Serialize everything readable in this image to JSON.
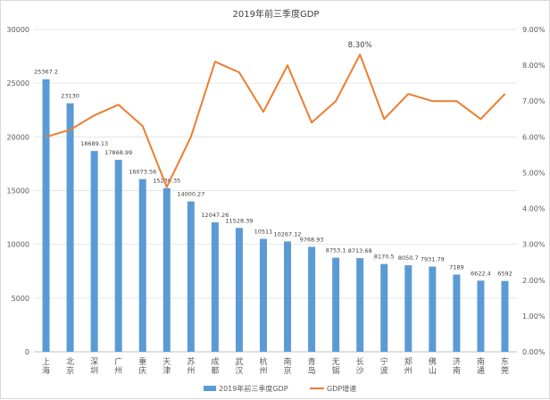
{
  "chart_data": {
    "type": "bar+line",
    "title": "2019年前三季度GDP",
    "categories": [
      "上海",
      "北京",
      "深圳",
      "广州",
      "重庆",
      "天津",
      "苏州",
      "成都",
      "武汉",
      "杭州",
      "南京",
      "青岛",
      "无锡",
      "长沙",
      "宁波",
      "郑州",
      "佛山",
      "济南",
      "南通",
      "东莞"
    ],
    "series": [
      {
        "name": "2019年前三季度GDP",
        "type": "bar",
        "axis": "left",
        "color": "#5B9BD5",
        "values": [
          25367.2,
          23130,
          18689.13,
          17868.99,
          16073.56,
          15236.35,
          14000.27,
          12047.26,
          11528.39,
          10511,
          10267.12,
          9768.93,
          8753.1,
          8713.68,
          8170.5,
          8050.7,
          7931.79,
          7189,
          6622.4,
          6592
        ],
        "labels": [
          "25367.2",
          "23130",
          "18689.13",
          "17868.99",
          "16073.56",
          "15236.35",
          "14000.27",
          "12047.26",
          "11528.39",
          "10511",
          "10267.12",
          "9768.93",
          "8753.1",
          "8713.68",
          "8170.5",
          "8050.7",
          "7931.79",
          "7189",
          "6622.4",
          "6592"
        ]
      },
      {
        "name": "GDP增速",
        "type": "line",
        "axis": "right",
        "color": "#ED7D31",
        "values": [
          6.0,
          6.2,
          6.6,
          6.9,
          6.3,
          4.6,
          6.0,
          8.1,
          7.8,
          6.7,
          8.0,
          6.4,
          7.0,
          8.3,
          6.5,
          7.2,
          7.0,
          7.0,
          6.5,
          7.2
        ],
        "annotation": {
          "index": 13,
          "text": "8.30%"
        }
      }
    ],
    "ylim_left": [
      0,
      30000
    ],
    "yticks_left": [
      "0",
      "5000",
      "10000",
      "15000",
      "20000",
      "25000",
      "30000"
    ],
    "ylim_right": [
      0,
      9
    ],
    "yticks_right": [
      "0.00%",
      "1.00%",
      "2.00%",
      "3.00%",
      "4.00%",
      "5.00%",
      "6.00%",
      "7.00%",
      "8.00%",
      "9.00%"
    ],
    "grid": true,
    "legend": "bottom"
  }
}
